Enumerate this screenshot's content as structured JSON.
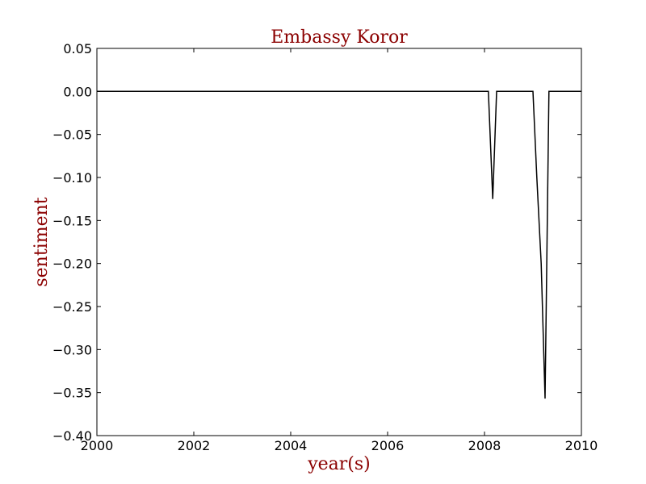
{
  "chart_data": {
    "type": "line",
    "title": "Embassy Koror",
    "xlabel": "year(s)",
    "ylabel": "sentiment",
    "xlim": [
      2000,
      2010
    ],
    "ylim": [
      -0.4,
      0.05
    ],
    "x_ticks": [
      "2000",
      "2002",
      "2004",
      "2006",
      "2008",
      "2010"
    ],
    "y_ticks": [
      "0.05",
      "0.00",
      "−0.05",
      "−0.10",
      "−0.15",
      "−0.20",
      "−0.25",
      "−0.30",
      "−0.35",
      "−0.40"
    ],
    "grid": false,
    "series": [
      {
        "color": "#000000",
        "points": [
          [
            2000.0,
            0.0
          ],
          [
            2008.08,
            0.0
          ],
          [
            2008.17,
            -0.125
          ],
          [
            2008.25,
            0.0
          ],
          [
            2009.0,
            0.0
          ],
          [
            2009.08,
            -0.1
          ],
          [
            2009.17,
            -0.2
          ],
          [
            2009.25,
            -0.357
          ],
          [
            2009.33,
            0.0
          ],
          [
            2010.0,
            0.0
          ]
        ]
      }
    ]
  },
  "colors": {
    "title": "#8b0000",
    "axis_label": "#8b0000",
    "line": "#000000",
    "frame": "#000000"
  }
}
